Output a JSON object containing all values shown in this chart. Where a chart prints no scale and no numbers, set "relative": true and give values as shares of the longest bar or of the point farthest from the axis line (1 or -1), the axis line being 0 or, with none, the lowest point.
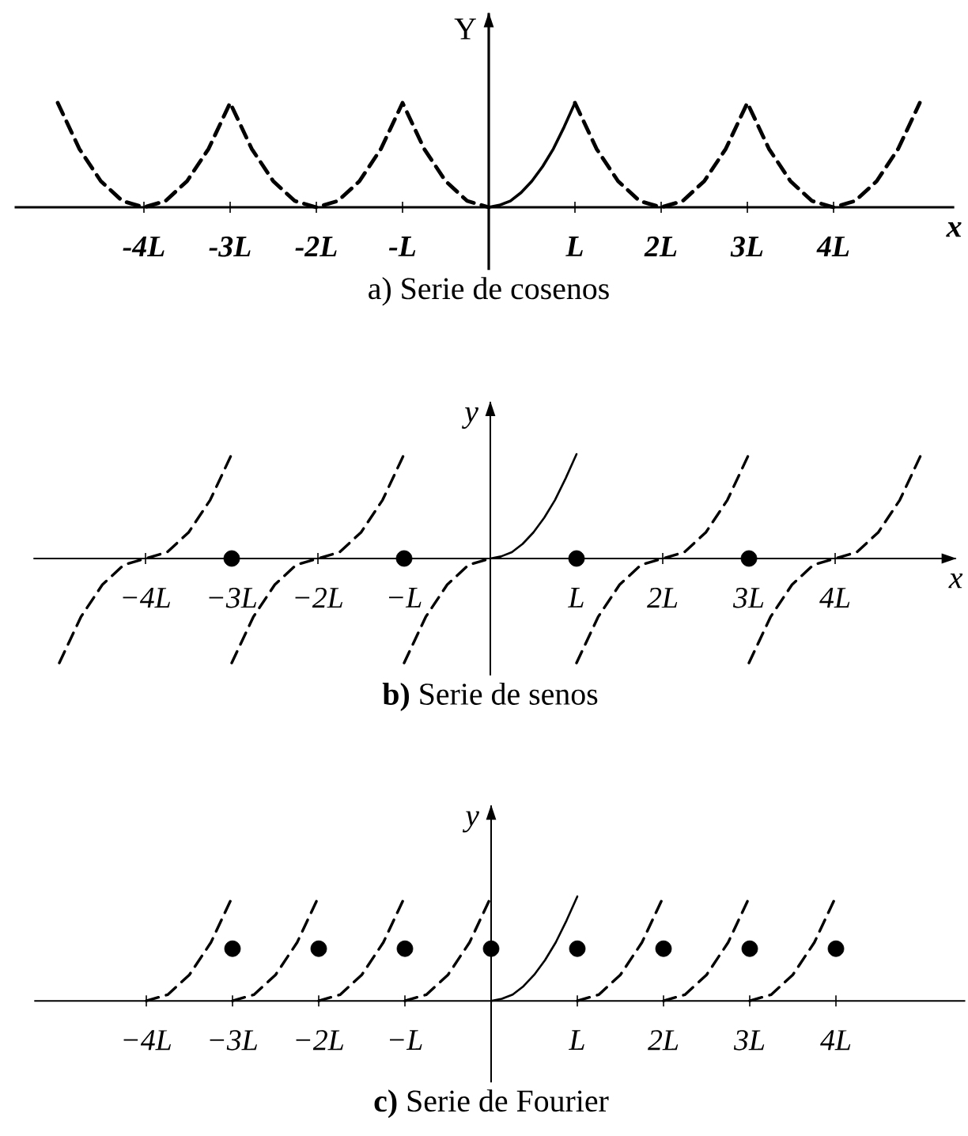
{
  "chart_data": [
    {
      "type": "line",
      "title": "a) Serie de cosenos",
      "xlabel": "x",
      "ylabel": "Y",
      "relative": true,
      "xlim": [
        -5.5,
        5.4
      ],
      "xticks": [
        {
          "value": -4,
          "label": "-4L"
        },
        {
          "value": -3,
          "label": "-3L"
        },
        {
          "value": -2,
          "label": "-2L"
        },
        {
          "value": -1,
          "label": "-L"
        },
        {
          "value": 1,
          "label": "L"
        },
        {
          "value": 2,
          "label": "2L"
        },
        {
          "value": 3,
          "label": "3L"
        },
        {
          "value": 4,
          "label": "4L"
        }
      ],
      "series": [
        {
          "color": "#000000",
          "line_style": "solid",
          "x": [
            0,
            0.125,
            0.25,
            0.375,
            0.5,
            0.625,
            0.75,
            0.875,
            1
          ],
          "values": [
            0,
            0.02,
            0.06,
            0.14,
            0.25,
            0.39,
            0.56,
            0.77,
            1
          ]
        },
        {
          "color": "#000000",
          "line_style": "dashed",
          "x": [
            -5,
            -4.75,
            -4.5,
            -4.25,
            -4,
            -3.75,
            -3.5,
            -3.25,
            -3,
            -2.75,
            -2.5,
            -2.25,
            -2,
            -1.75,
            -1.5,
            -1.25,
            -1,
            -0.75,
            -0.5,
            -0.25,
            0
          ],
          "values": [
            1,
            0.56,
            0.25,
            0.06,
            0,
            0.06,
            0.25,
            0.56,
            1,
            0.56,
            0.25,
            0.06,
            0,
            0.06,
            0.25,
            0.56,
            1,
            0.56,
            0.25,
            0.06,
            0
          ]
        },
        {
          "color": "#000000",
          "line_style": "dashed",
          "x": [
            1,
            1.25,
            1.5,
            1.75,
            2,
            2.25,
            2.5,
            2.75,
            3,
            3.25,
            3.5,
            3.75,
            4,
            4.25,
            4.5,
            4.75,
            5
          ],
          "values": [
            1,
            0.56,
            0.25,
            0.06,
            0,
            0.06,
            0.25,
            0.56,
            1,
            0.56,
            0.25,
            0.06,
            0,
            0.06,
            0.25,
            0.56,
            1
          ]
        }
      ]
    },
    {
      "type": "line",
      "title": "**b)** Serie de senos",
      "xlabel": "x",
      "ylabel": "y",
      "relative": true,
      "xlim": [
        -5.3,
        5.4
      ],
      "xticks": [
        {
          "value": -4,
          "label": "−4L"
        },
        {
          "value": -3,
          "label": "−3L"
        },
        {
          "value": -2,
          "label": "−2L"
        },
        {
          "value": -1,
          "label": "−L"
        },
        {
          "value": 1,
          "label": "L"
        },
        {
          "value": 2,
          "label": "2L"
        },
        {
          "value": 3,
          "label": "3L"
        },
        {
          "value": 4,
          "label": "4L"
        }
      ],
      "series": [
        {
          "color": "#000000",
          "line_style": "solid",
          "x": [
            0,
            0.125,
            0.25,
            0.375,
            0.5,
            0.625,
            0.75,
            0.875,
            1
          ],
          "values": [
            0,
            0.02,
            0.06,
            0.14,
            0.25,
            0.39,
            0.56,
            0.77,
            1
          ]
        },
        {
          "color": "#000000",
          "line_style": "dashed",
          "x": [
            -5,
            -4.75,
            -4.5,
            -4.25,
            -4,
            -3.75,
            -3.5,
            -3.25,
            -3
          ],
          "values": [
            -1,
            -0.56,
            -0.25,
            -0.06,
            0,
            0.06,
            0.25,
            0.56,
            1
          ]
        },
        {
          "color": "#000000",
          "line_style": "dashed",
          "x": [
            -3,
            -2.75,
            -2.5,
            -2.25,
            -2,
            -1.75,
            -1.5,
            -1.25,
            -1
          ],
          "values": [
            -1,
            -0.56,
            -0.25,
            -0.06,
            0,
            0.06,
            0.25,
            0.56,
            1
          ]
        },
        {
          "color": "#000000",
          "line_style": "dashed",
          "x": [
            -1,
            -0.75,
            -0.5,
            -0.25,
            0
          ],
          "values": [
            -1,
            -0.56,
            -0.25,
            -0.06,
            0
          ]
        },
        {
          "color": "#000000",
          "line_style": "dashed",
          "x": [
            1,
            1.25,
            1.5,
            1.75,
            2,
            2.25,
            2.5,
            2.75,
            3
          ],
          "values": [
            -1,
            -0.56,
            -0.25,
            -0.06,
            0,
            0.06,
            0.25,
            0.56,
            1
          ]
        },
        {
          "color": "#000000",
          "line_style": "dashed",
          "x": [
            3,
            3.25,
            3.5,
            3.75,
            4,
            4.25,
            4.5,
            4.75,
            5
          ],
          "values": [
            -1,
            -0.56,
            -0.25,
            -0.06,
            0,
            0.06,
            0.25,
            0.56,
            1
          ]
        },
        {
          "type": "scatter",
          "color": "#000000",
          "marker": "circle",
          "x": [
            -3,
            -1,
            1,
            3
          ],
          "values": [
            0,
            0,
            0,
            0
          ]
        }
      ]
    },
    {
      "type": "line",
      "title": "**c)** Serie de Fourier",
      "ylabel": "y",
      "relative": true,
      "xlim": [
        -5.3,
        5.5
      ],
      "xticks": [
        {
          "value": -4,
          "label": "−4L"
        },
        {
          "value": -3,
          "label": "−3L"
        },
        {
          "value": -2,
          "label": "−2L"
        },
        {
          "value": -1,
          "label": "−L"
        },
        {
          "value": 1,
          "label": "L"
        },
        {
          "value": 2,
          "label": "2L"
        },
        {
          "value": 3,
          "label": "3L"
        },
        {
          "value": 4,
          "label": "4L"
        }
      ],
      "series": [
        {
          "color": "#000000",
          "line_style": "solid",
          "x": [
            0,
            0.125,
            0.25,
            0.375,
            0.5,
            0.625,
            0.75,
            0.875,
            1
          ],
          "values": [
            0,
            0.02,
            0.06,
            0.14,
            0.25,
            0.39,
            0.56,
            0.77,
            1
          ]
        },
        {
          "color": "#000000",
          "line_style": "dashed",
          "x": [
            -4,
            -3.75,
            -3.5,
            -3.25,
            -3
          ],
          "values": [
            0,
            0.06,
            0.25,
            0.56,
            1
          ]
        },
        {
          "color": "#000000",
          "line_style": "dashed",
          "x": [
            -3,
            -2.75,
            -2.5,
            -2.25,
            -2
          ],
          "values": [
            0,
            0.06,
            0.25,
            0.56,
            1
          ]
        },
        {
          "color": "#000000",
          "line_style": "dashed",
          "x": [
            -2,
            -1.75,
            -1.5,
            -1.25,
            -1
          ],
          "values": [
            0,
            0.06,
            0.25,
            0.56,
            1
          ]
        },
        {
          "color": "#000000",
          "line_style": "dashed",
          "x": [
            -1,
            -0.75,
            -0.5,
            -0.25,
            0
          ],
          "values": [
            0,
            0.06,
            0.25,
            0.56,
            1
          ]
        },
        {
          "color": "#000000",
          "line_style": "dashed",
          "x": [
            1,
            1.25,
            1.5,
            1.75,
            2
          ],
          "values": [
            0,
            0.06,
            0.25,
            0.56,
            1
          ]
        },
        {
          "color": "#000000",
          "line_style": "dashed",
          "x": [
            2,
            2.25,
            2.5,
            2.75,
            3
          ],
          "values": [
            0,
            0.06,
            0.25,
            0.56,
            1
          ]
        },
        {
          "color": "#000000",
          "line_style": "dashed",
          "x": [
            3,
            3.25,
            3.5,
            3.75,
            4
          ],
          "values": [
            0,
            0.06,
            0.25,
            0.56,
            1
          ]
        },
        {
          "type": "scatter",
          "color": "#000000",
          "marker": "circle",
          "x": [
            -3,
            -2,
            -1,
            0,
            1,
            2,
            3,
            4
          ],
          "values": [
            0.5,
            0.5,
            0.5,
            0.5,
            0.5,
            0.5,
            0.5,
            0.5
          ]
        }
      ]
    }
  ]
}
